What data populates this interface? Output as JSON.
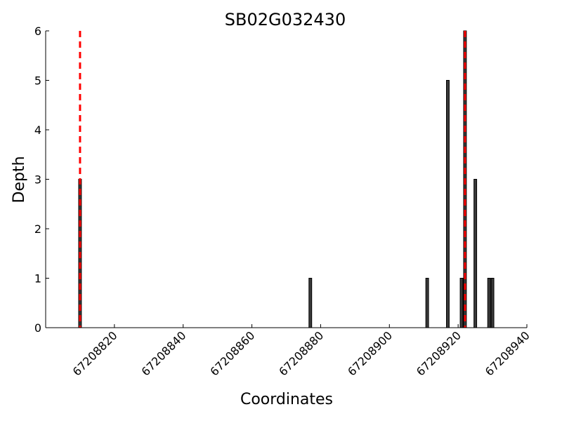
{
  "chart_data": {
    "type": "bar",
    "title": "SB02G032430",
    "xlabel": "Coordinates",
    "ylabel": "Depth",
    "xlim": [
      67208800,
      67208940
    ],
    "ylim": [
      0,
      6
    ],
    "x_ticks": [
      67208820,
      67208840,
      67208860,
      67208880,
      67208900,
      67208920,
      67208940
    ],
    "x_tick_labels": [
      "67208820",
      "67208840",
      "67208860",
      "67208880",
      "67208900",
      "67208920",
      "67208940"
    ],
    "y_ticks": [
      0,
      1,
      2,
      3,
      4,
      5,
      6
    ],
    "y_tick_labels": [
      "0",
      "1",
      "2",
      "3",
      "4",
      "5",
      "6"
    ],
    "grid": false,
    "bar_color": "#3a3a3a",
    "bars": [
      {
        "x": 67208810,
        "value": 3
      },
      {
        "x": 67208877,
        "value": 1
      },
      {
        "x": 67208911,
        "value": 1
      },
      {
        "x": 67208917,
        "value": 5
      },
      {
        "x": 67208921,
        "value": 1
      },
      {
        "x": 67208922,
        "value": 6
      },
      {
        "x": 67208925,
        "value": 3
      },
      {
        "x": 67208929,
        "value": 1
      },
      {
        "x": 67208930,
        "value": 1
      }
    ],
    "reference_lines": [
      {
        "x": 67208810,
        "color": "#ff0000",
        "style": "dashed"
      },
      {
        "x": 67208922,
        "color": "#ff0000",
        "style": "dashed"
      }
    ]
  }
}
